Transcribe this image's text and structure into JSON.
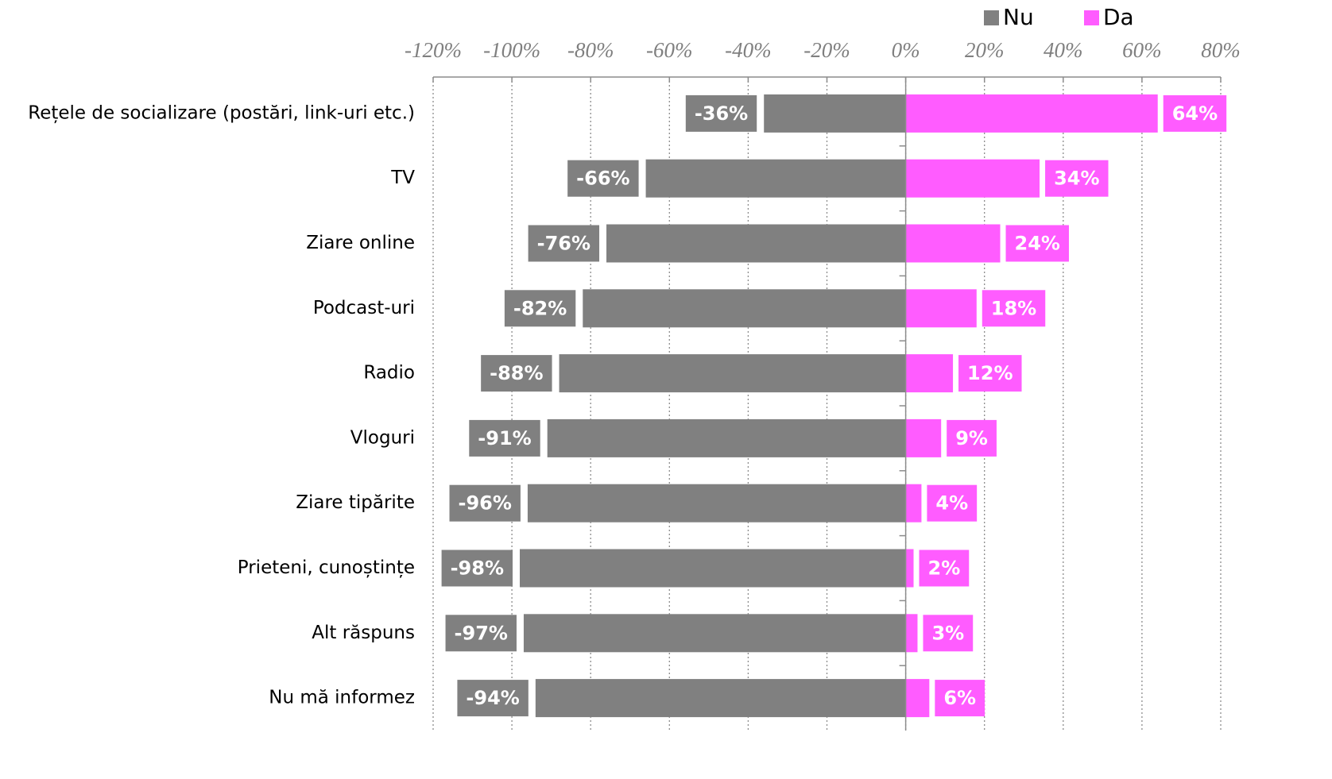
{
  "chart_data": {
    "type": "diverging-bar",
    "categories": [
      "Rețele de socializare (postări, link-uri etc.)",
      "TV",
      "Ziare online",
      "Podcast-uri",
      "Radio",
      "Vloguri",
      "Ziare tipărite",
      "Prieteni, cunoștințe",
      "Alt răspuns",
      "Nu mă informez"
    ],
    "series": [
      {
        "name": "Nu",
        "color": "#808080",
        "values": [
          -36,
          -66,
          -76,
          -82,
          -88,
          -91,
          -96,
          -98,
          -97,
          -94
        ],
        "value_labels": [
          "-36%",
          "-66%",
          "-76%",
          "-82%",
          "-88%",
          "-91%",
          "-96%",
          "-98%",
          "-97%",
          "-94%"
        ]
      },
      {
        "name": "Da",
        "color": "#ff5cff",
        "values": [
          64,
          34,
          24,
          18,
          12,
          9,
          4,
          2,
          3,
          6
        ],
        "value_labels": [
          "64%",
          "34%",
          "24%",
          "18%",
          "12%",
          "9%",
          "4%",
          "2%",
          "3%",
          "6%"
        ]
      }
    ],
    "xlim": [
      -120,
      80
    ],
    "xticks": [
      {
        "value": -120,
        "label": "-120%"
      },
      {
        "value": -100,
        "label": "-100%"
      },
      {
        "value": -80,
        "label": "-80%"
      },
      {
        "value": -60,
        "label": "-60%"
      },
      {
        "value": -40,
        "label": "-40%"
      },
      {
        "value": -20,
        "label": "-20%"
      },
      {
        "value": 0,
        "label": "0%"
      },
      {
        "value": 20,
        "label": "20%"
      },
      {
        "value": 40,
        "label": "40%"
      },
      {
        "value": 60,
        "label": "60%"
      },
      {
        "value": 80,
        "label": "80%"
      }
    ],
    "grid": true,
    "legend": "top-right"
  }
}
